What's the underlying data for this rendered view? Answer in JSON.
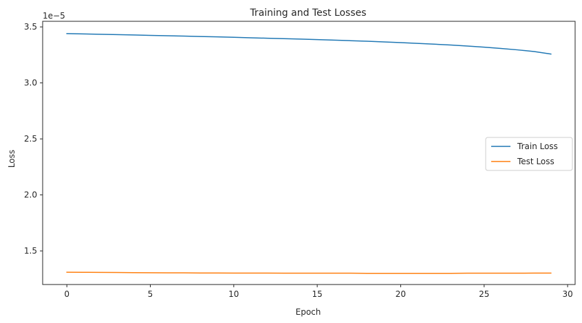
{
  "chart_data": {
    "type": "line",
    "title": "Training and Test Losses",
    "xlabel": "Epoch",
    "ylabel": "Loss",
    "y_offset_text": "1e−5",
    "y_scale_factor": 1e-05,
    "xlim": [
      -1.45,
      30.45
    ],
    "ylim": [
      1.2e-05,
      3.55e-05
    ],
    "xticks": [
      0,
      5,
      10,
      15,
      20,
      25,
      30
    ],
    "xtick_labels": [
      "0",
      "5",
      "10",
      "15",
      "20",
      "25",
      "30"
    ],
    "yticks": [
      1.5e-05,
      2e-05,
      2.5e-05,
      3e-05,
      3.5e-05
    ],
    "ytick_labels": [
      "1.5",
      "2.0",
      "2.5",
      "3.0",
      "3.5"
    ],
    "grid": false,
    "legend_position": "center-right",
    "x": [
      0,
      1,
      2,
      3,
      4,
      5,
      6,
      7,
      8,
      9,
      10,
      11,
      12,
      13,
      14,
      15,
      16,
      17,
      18,
      19,
      20,
      21,
      22,
      23,
      24,
      25,
      26,
      27,
      28,
      29
    ],
    "series": [
      {
        "name": "Train Loss",
        "color": "#1f77b4",
        "values": [
          3.44e-05,
          3.437e-05,
          3.434e-05,
          3.431e-05,
          3.428e-05,
          3.424e-05,
          3.421e-05,
          3.418e-05,
          3.414e-05,
          3.411e-05,
          3.407e-05,
          3.403e-05,
          3.399e-05,
          3.395e-05,
          3.391e-05,
          3.387e-05,
          3.382e-05,
          3.377e-05,
          3.372e-05,
          3.366e-05,
          3.36e-05,
          3.353e-05,
          3.346e-05,
          3.338e-05,
          3.329e-05,
          3.319e-05,
          3.308e-05,
          3.295e-05,
          3.28e-05,
          3.258e-05
        ]
      },
      {
        "name": "Test Loss",
        "color": "#ff7f0e",
        "values": [
          1.31e-05,
          1.309e-05,
          1.308e-05,
          1.307e-05,
          1.306e-05,
          1.305e-05,
          1.304e-05,
          1.304e-05,
          1.303e-05,
          1.303e-05,
          1.302e-05,
          1.302e-05,
          1.302e-05,
          1.301e-05,
          1.301e-05,
          1.301e-05,
          1.301e-05,
          1.301e-05,
          1.3e-05,
          1.3e-05,
          1.3e-05,
          1.3e-05,
          1.3e-05,
          1.3e-05,
          1.301e-05,
          1.301e-05,
          1.301e-05,
          1.301e-05,
          1.302e-05,
          1.302e-05
        ]
      }
    ]
  }
}
